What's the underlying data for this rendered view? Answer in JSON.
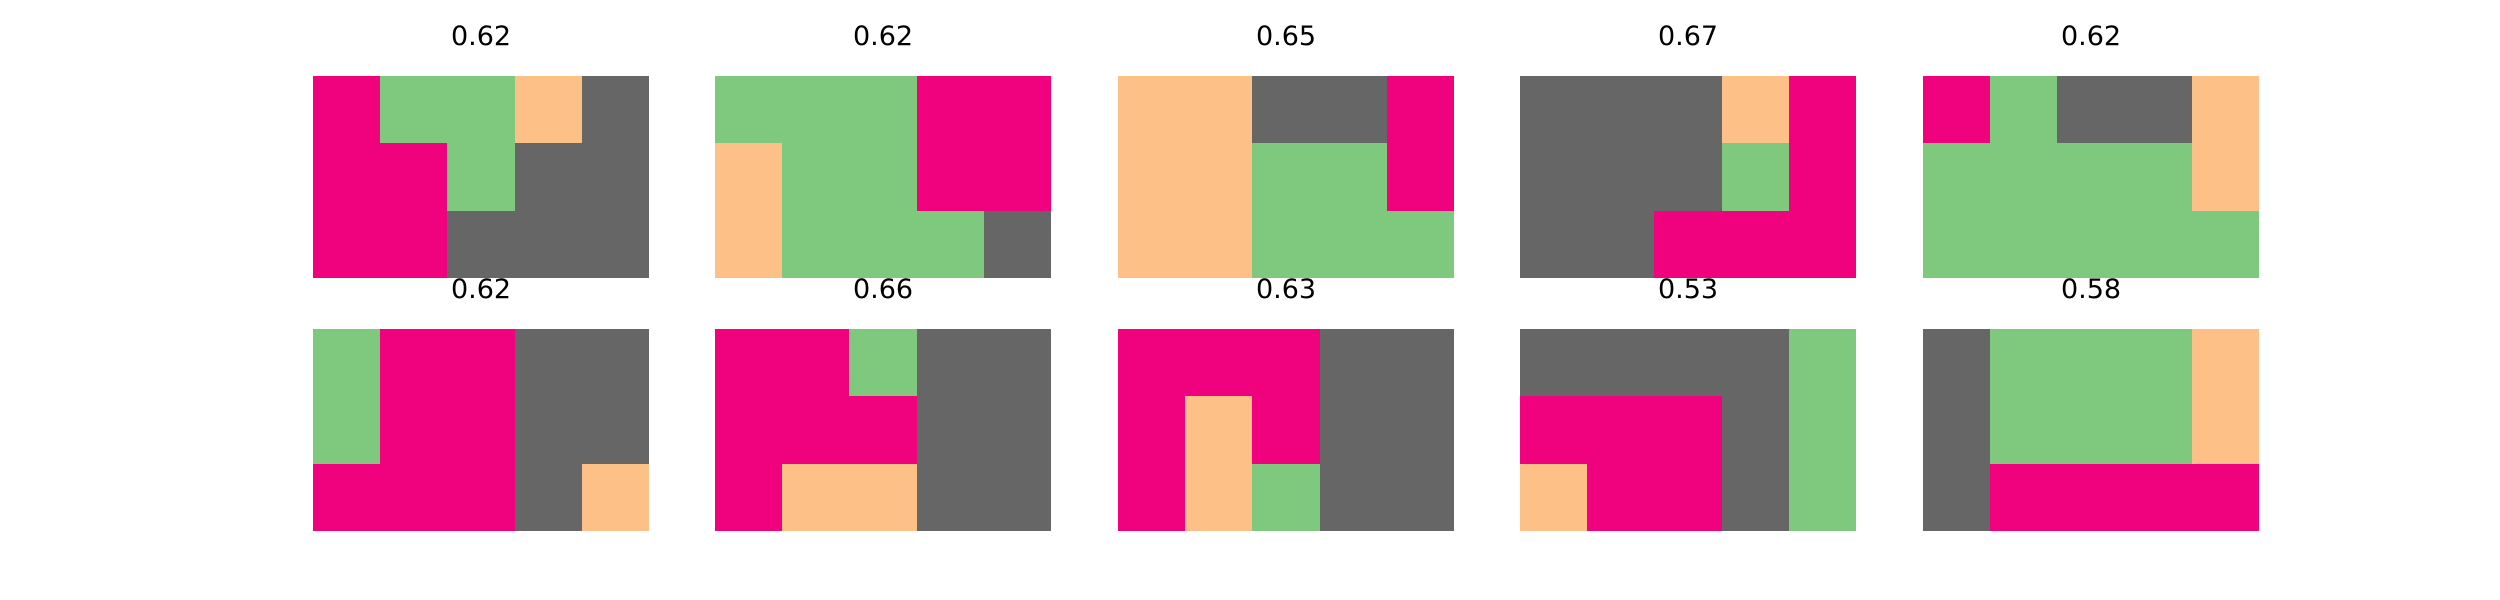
{
  "palette": {
    "magenta": "#f0027f",
    "green": "#7fc97f",
    "orange": "#fdc086",
    "gray": "#666666"
  },
  "panels": [
    {
      "title": "0.62",
      "grid": [
        [
          "magenta",
          "green",
          "green",
          "orange",
          "gray"
        ],
        [
          "magenta",
          "magenta",
          "green",
          "gray",
          "gray"
        ],
        [
          "magenta",
          "magenta",
          "gray",
          "gray",
          "gray"
        ]
      ]
    },
    {
      "title": "0.62",
      "grid": [
        [
          "green",
          "green",
          "green",
          "magenta",
          "magenta"
        ],
        [
          "orange",
          "green",
          "green",
          "magenta",
          "magenta"
        ],
        [
          "orange",
          "green",
          "green",
          "green",
          "gray"
        ]
      ]
    },
    {
      "title": "0.65",
      "grid": [
        [
          "orange",
          "orange",
          "gray",
          "gray",
          "magenta"
        ],
        [
          "orange",
          "orange",
          "green",
          "green",
          "magenta"
        ],
        [
          "orange",
          "orange",
          "green",
          "green",
          "green"
        ]
      ]
    },
    {
      "title": "0.67",
      "grid": [
        [
          "gray",
          "gray",
          "gray",
          "orange",
          "magenta"
        ],
        [
          "gray",
          "gray",
          "gray",
          "green",
          "magenta"
        ],
        [
          "gray",
          "gray",
          "magenta",
          "magenta",
          "magenta"
        ]
      ]
    },
    {
      "title": "0.62",
      "grid": [
        [
          "magenta",
          "green",
          "gray",
          "gray",
          "orange"
        ],
        [
          "green",
          "green",
          "green",
          "green",
          "orange"
        ],
        [
          "green",
          "green",
          "green",
          "green",
          "green"
        ]
      ]
    },
    {
      "title": "0.62",
      "grid": [
        [
          "green",
          "magenta",
          "magenta",
          "gray",
          "gray"
        ],
        [
          "green",
          "magenta",
          "magenta",
          "gray",
          "gray"
        ],
        [
          "magenta",
          "magenta",
          "magenta",
          "gray",
          "orange"
        ]
      ]
    },
    {
      "title": "0.66",
      "grid": [
        [
          "magenta",
          "magenta",
          "green",
          "gray",
          "gray"
        ],
        [
          "magenta",
          "magenta",
          "magenta",
          "gray",
          "gray"
        ],
        [
          "magenta",
          "orange",
          "orange",
          "gray",
          "gray"
        ]
      ]
    },
    {
      "title": "0.63",
      "grid": [
        [
          "magenta",
          "magenta",
          "magenta",
          "gray",
          "gray"
        ],
        [
          "magenta",
          "orange",
          "magenta",
          "gray",
          "gray"
        ],
        [
          "magenta",
          "orange",
          "green",
          "gray",
          "gray"
        ]
      ]
    },
    {
      "title": "0.53",
      "grid": [
        [
          "gray",
          "gray",
          "gray",
          "gray",
          "green"
        ],
        [
          "magenta",
          "magenta",
          "magenta",
          "gray",
          "green"
        ],
        [
          "orange",
          "magenta",
          "magenta",
          "gray",
          "green"
        ]
      ]
    },
    {
      "title": "0.58",
      "grid": [
        [
          "gray",
          "green",
          "green",
          "green",
          "orange"
        ],
        [
          "gray",
          "green",
          "green",
          "green",
          "orange"
        ],
        [
          "gray",
          "magenta",
          "magenta",
          "magenta",
          "magenta"
        ]
      ]
    }
  ]
}
